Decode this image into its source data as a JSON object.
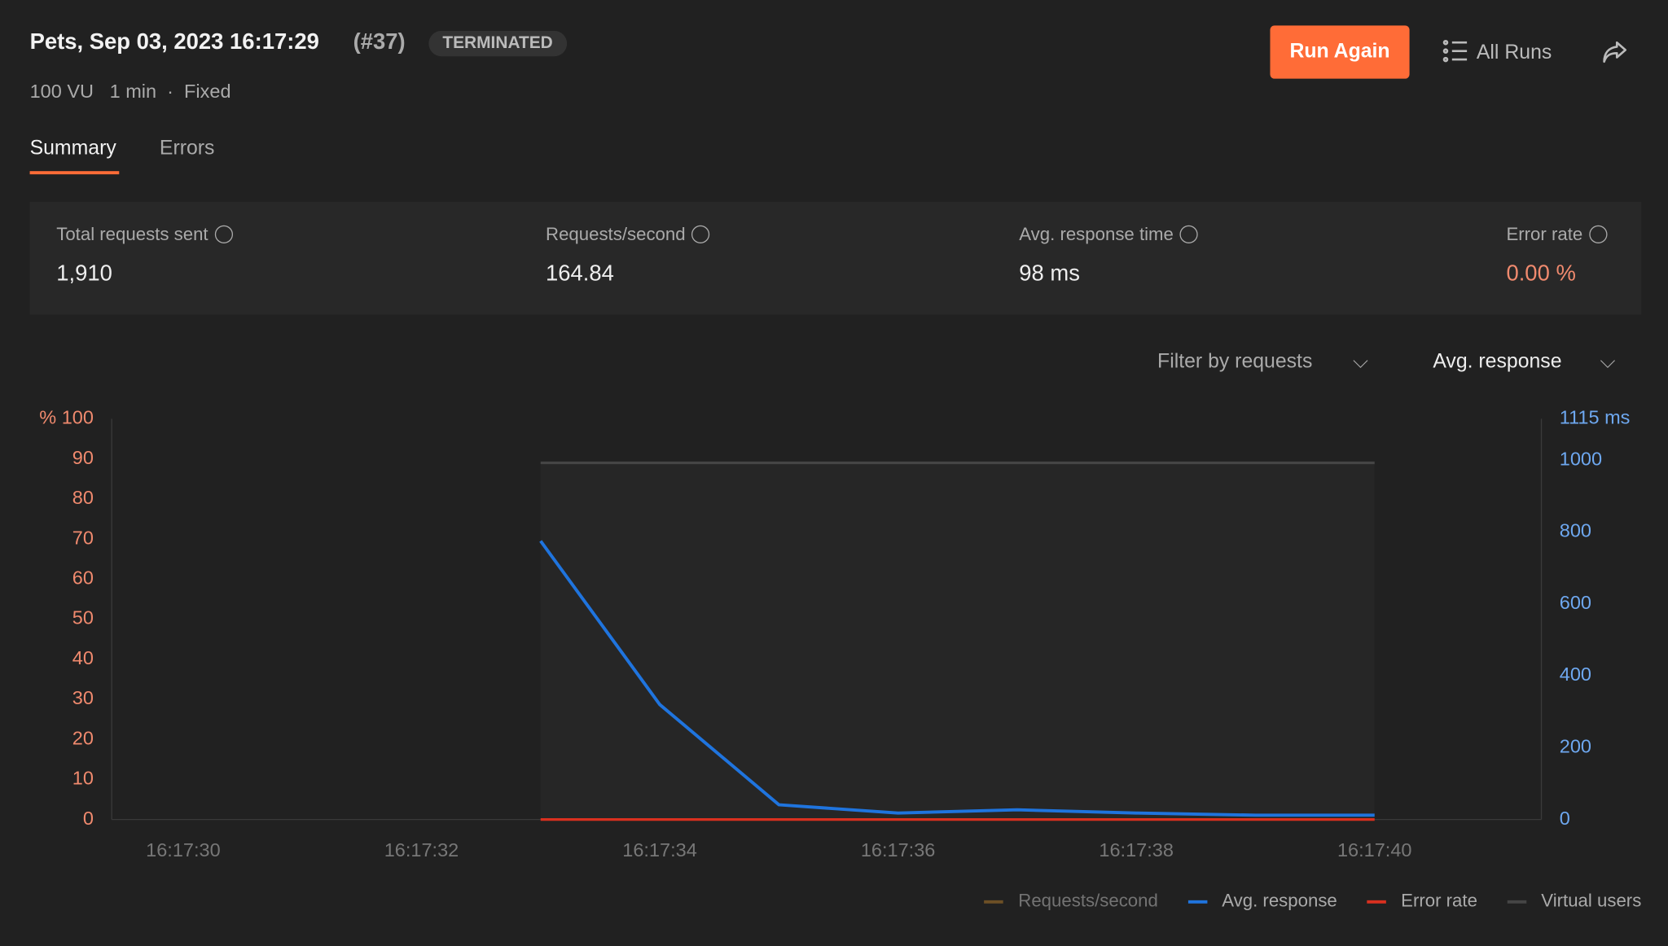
{
  "header": {
    "title": "Pets, Sep 03, 2023 16:17:29",
    "run": "(#37)",
    "status": "TERMINATED",
    "meta": [
      "100 VU",
      "1 min",
      "Fixed"
    ],
    "actions": {
      "run_again": "Run Again",
      "all_runs": "All Runs"
    }
  },
  "tabs": [
    "Summary",
    "Errors"
  ],
  "stats": [
    {
      "label": "Total requests sent",
      "value": "1,910"
    },
    {
      "label": "Requests/second",
      "value": "164.84"
    },
    {
      "label": "Avg. response time",
      "value": "98 ms"
    },
    {
      "label": "Error rate",
      "value": "0.00 %"
    }
  ],
  "filters": [
    "Filter by requests",
    "Avg. response"
  ],
  "chart_data": {
    "type": "line",
    "x": [
      "16:17:33",
      "16:17:34",
      "16:17:35",
      "16:17:36",
      "16:17:37",
      "16:17:38",
      "16:17:39",
      "16:17:40"
    ],
    "xlim": [
      "16:17:29.4",
      "16:17:41.4"
    ],
    "xticks": [
      "16:17:30",
      "16:17:32",
      "16:17:34",
      "16:17:36",
      "16:17:38",
      "16:17:40"
    ],
    "ylim": [
      0,
      100
    ],
    "yticks": [
      0,
      10,
      20,
      30,
      40,
      50,
      60,
      70,
      80,
      90,
      {
        "value": 100,
        "label": "% 100"
      }
    ],
    "y2lim": [
      0,
      1115
    ],
    "y2ticks": [
      0,
      200,
      400,
      600,
      800,
      1000,
      {
        "value": 1115,
        "label": "1115 ms"
      }
    ],
    "series": [
      {
        "name": "Requests/second",
        "color": "#a0712a",
        "values": [
          null,
          null,
          null,
          null,
          null,
          null,
          null,
          null
        ]
      },
      {
        "name": "Avg. response",
        "color": "#1f74de",
        "axis": "y2",
        "values": [
          775,
          320,
          41,
          18,
          27,
          18,
          12,
          12
        ]
      },
      {
        "name": "Error rate",
        "color": "#d9301f",
        "values": [
          0,
          0,
          0,
          0,
          0,
          0,
          0,
          0
        ]
      },
      {
        "name": "Virtual users",
        "color": "#454545",
        "values": [
          89,
          89,
          89,
          89,
          89,
          89,
          89,
          89
        ]
      }
    ]
  }
}
